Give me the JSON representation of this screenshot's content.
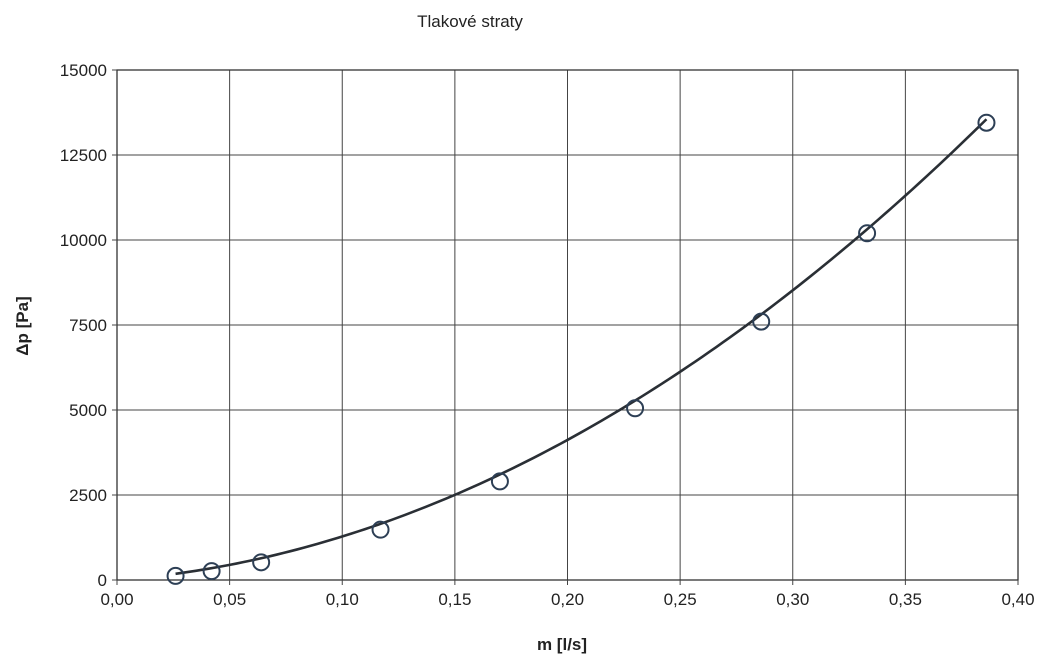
{
  "chart_data": {
    "type": "scatter",
    "title": "Tlakové straty",
    "xlabel": "m [l/s]",
    "ylabel": "Δp [Pa]",
    "xlim": [
      0,
      0.4
    ],
    "ylim": [
      0,
      15000
    ],
    "x_ticks": [
      0,
      0.05,
      0.1,
      0.15,
      0.2,
      0.25,
      0.3,
      0.35,
      0.4
    ],
    "x_tick_labels": [
      "0,00",
      "0,05",
      "0,10",
      "0,15",
      "0,20",
      "0,25",
      "0,30",
      "0,35",
      "0,40"
    ],
    "y_ticks": [
      0,
      2500,
      5000,
      7500,
      10000,
      12500,
      15000
    ],
    "y_tick_labels": [
      "0",
      "2500",
      "5000",
      "7500",
      "10000",
      "12500",
      "15000"
    ],
    "grid": true,
    "legend": "none",
    "series": [
      {
        "marker": "circle",
        "points": [
          {
            "x": 0.026,
            "y": 120
          },
          {
            "x": 0.042,
            "y": 260
          },
          {
            "x": 0.064,
            "y": 520
          },
          {
            "x": 0.117,
            "y": 1480
          },
          {
            "x": 0.17,
            "y": 2900
          },
          {
            "x": 0.23,
            "y": 5050
          },
          {
            "x": 0.286,
            "y": 7600
          },
          {
            "x": 0.333,
            "y": 10200
          },
          {
            "x": 0.386,
            "y": 13450
          }
        ]
      }
    ],
    "trendline": {
      "type": "polynomial",
      "x_range": [
        0.026,
        0.386
      ],
      "coefficients": [
        0,
        5000,
        78000
      ]
    }
  }
}
